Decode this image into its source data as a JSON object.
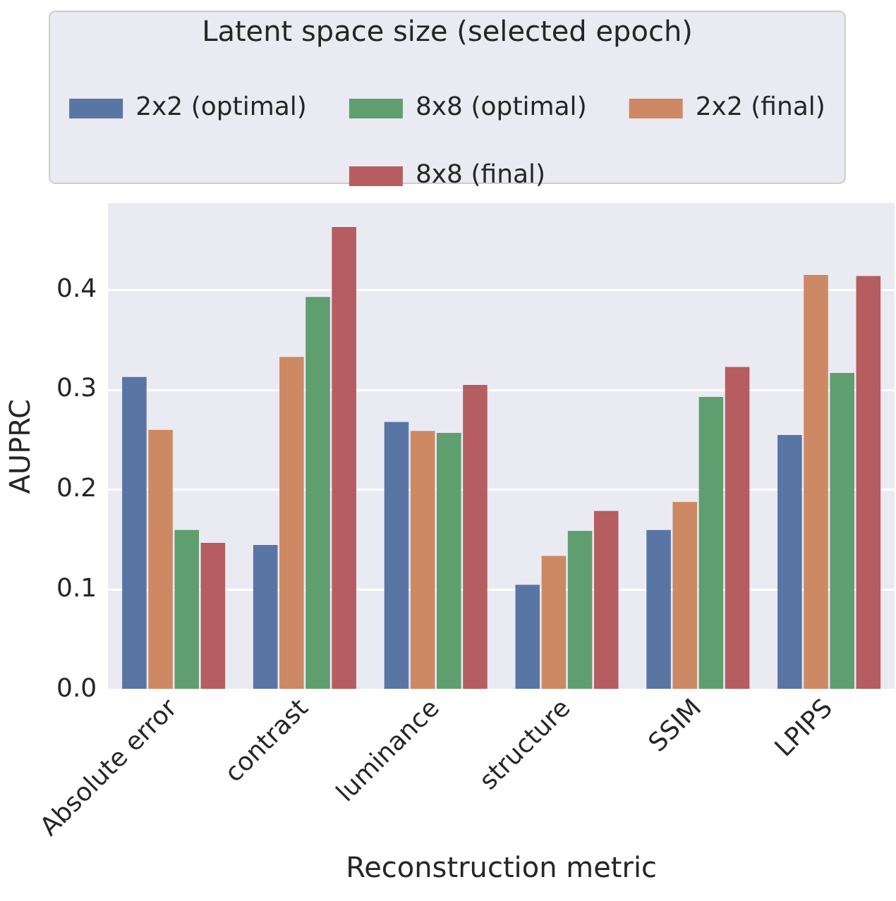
{
  "chart_data": {
    "type": "bar",
    "xlabel": "Reconstruction metric",
    "ylabel": "AUPRC",
    "legend_title": "Latent space size (selected epoch)",
    "legend": "top",
    "categories": [
      "Absolute error",
      "contrast",
      "luminance",
      "structure",
      "SSIM",
      "LPIPS"
    ],
    "series": [
      {
        "name": "2x2 (optimal)",
        "color": "#5975a4",
        "values": [
          0.313,
          0.145,
          0.268,
          0.105,
          0.16,
          0.255
        ]
      },
      {
        "name": "2x2 (final)",
        "color": "#cc8963",
        "values": [
          0.26,
          0.333,
          0.259,
          0.134,
          0.188,
          0.415
        ]
      },
      {
        "name": "8x8 (optimal)",
        "color": "#5f9e6e",
        "values": [
          0.16,
          0.393,
          0.257,
          0.159,
          0.293,
          0.317
        ]
      },
      {
        "name": "8x8 (final)",
        "color": "#b55d60",
        "values": [
          0.147,
          0.463,
          0.305,
          0.179,
          0.323,
          0.414
        ]
      }
    ],
    "ylim": [
      0,
      0.487
    ],
    "yticks": [
      {
        "value": 0,
        "label": "0.0"
      },
      0.1,
      0.2,
      0.3,
      0.4
    ],
    "grid": "y"
  }
}
